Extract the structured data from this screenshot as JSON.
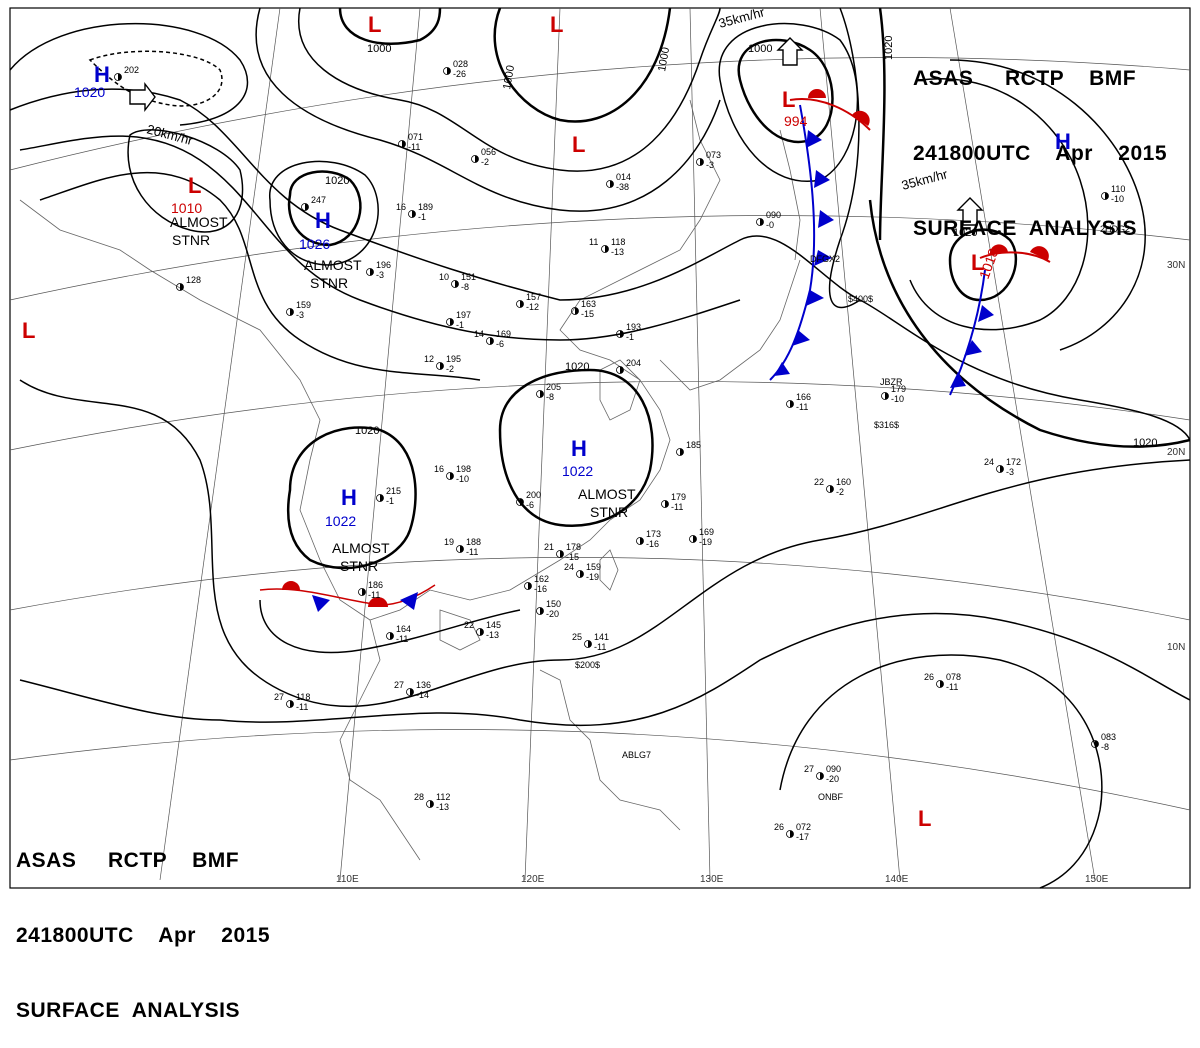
{
  "header_top": {
    "line1": "ASAS     RCTP    BMF",
    "line2": "241800UTC    Apr    2015",
    "line3": "SURFACE  ANALYSIS"
  },
  "header_bottom": {
    "line1": "ASAS     RCTP    BMF",
    "line2": "241800UTC    Apr    2015",
    "line3": "SURFACE  ANALYSIS"
  },
  "pressure_centers": [
    {
      "id": "h-nw",
      "type": "H",
      "pressure": "1020",
      "color": "#0000cc"
    },
    {
      "id": "l-nw",
      "type": "L",
      "pressure": "1010",
      "color": "#cc0000",
      "note": "ALMOST STNR"
    },
    {
      "id": "h-north",
      "type": "H",
      "pressure": "1026",
      "color": "#0000cc",
      "note": "ALMOST STNR"
    },
    {
      "id": "h-south-china",
      "type": "H",
      "pressure": "1022",
      "color": "#0000cc",
      "note": "ALMOST STNR"
    },
    {
      "id": "h-east-china",
      "type": "H",
      "pressure": "1022",
      "color": "#0000cc",
      "note": "ALMOST STNR"
    },
    {
      "id": "l-japan-sea",
      "type": "L",
      "pressure": "994",
      "color": "#cc0000"
    },
    {
      "id": "l-pacific",
      "type": "L",
      "pressure": "1018",
      "color": "#cc0000"
    },
    {
      "id": "h-ne",
      "type": "H",
      "pressure": "",
      "color": "#0000cc"
    },
    {
      "id": "l-top1",
      "type": "L",
      "pressure": "",
      "color": "#cc0000"
    },
    {
      "id": "l-top2",
      "type": "L",
      "pressure": "",
      "color": "#cc0000"
    },
    {
      "id": "l-mongolia",
      "type": "L",
      "pressure": "",
      "color": "#cc0000"
    },
    {
      "id": "l-west",
      "type": "L",
      "pressure": "",
      "color": "#cc0000"
    },
    {
      "id": "l-south-pacific",
      "type": "L",
      "pressure": "",
      "color": "#cc0000"
    }
  ],
  "movements": [
    {
      "id": "move-nw",
      "text": "20km/hr"
    },
    {
      "id": "move-japan",
      "text": "35km/hr"
    },
    {
      "id": "move-pacific",
      "text": "35km/hr"
    }
  ],
  "isobar_labels": [
    {
      "id": "iso-1000a",
      "text": "1000"
    },
    {
      "id": "iso-1000b",
      "text": "1000"
    },
    {
      "id": "iso-1000c",
      "text": "1000"
    },
    {
      "id": "iso-1000d",
      "text": "1000"
    },
    {
      "id": "iso-1020a",
      "text": "1020"
    },
    {
      "id": "iso-1020b",
      "text": "1020"
    },
    {
      "id": "iso-1020c",
      "text": "1020"
    },
    {
      "id": "iso-1020d",
      "text": "1020"
    },
    {
      "id": "iso-1020e",
      "text": "1020"
    },
    {
      "id": "iso-1020f",
      "text": "1020"
    }
  ],
  "axis_labels": {
    "lon": [
      "110E",
      "120E",
      "130E",
      "140E",
      "150E"
    ],
    "lat": [
      "30N",
      "20N",
      "10N"
    ]
  },
  "station_plots": [
    {
      "id": "st1",
      "temp": "28",
      "pres": "112",
      "dp": "-13"
    },
    {
      "id": "st2",
      "temp": "27",
      "pres": "118",
      "dp": "-11"
    },
    {
      "id": "st3",
      "temp": "27",
      "pres": "136",
      "dp": "-14"
    },
    {
      "id": "st4",
      "temp": "25",
      "pres": "141",
      "dp": "-11"
    },
    {
      "id": "st5",
      "temp": "24",
      "pres": "159",
      "dp": "-19"
    },
    {
      "id": "st6",
      "temp": "22",
      "pres": "145",
      "dp": "-13"
    },
    {
      "id": "st7",
      "temp": "21",
      "pres": "178",
      "dp": "-15"
    },
    {
      "id": "st8",
      "temp": "19",
      "pres": "188",
      "dp": "-11"
    },
    {
      "id": "st9",
      "temp": "16",
      "pres": "198",
      "dp": "-10"
    },
    {
      "id": "st10",
      "temp": "12",
      "pres": "195",
      "dp": "-2"
    },
    {
      "id": "st11",
      "temp": "11",
      "pres": "118",
      "dp": "-13"
    },
    {
      "id": "st12",
      "temp": "10",
      "pres": "151",
      "dp": "-8"
    },
    {
      "id": "st13",
      "temp": "14",
      "pres": "169",
      "dp": "-6"
    },
    {
      "id": "st14",
      "temp": "24",
      "pres": "172",
      "dp": "-3"
    },
    {
      "id": "st15",
      "temp": "26",
      "pres": "078",
      "dp": "-11"
    },
    {
      "id": "st16",
      "temp": "26",
      "pres": "072",
      "dp": "-17"
    },
    {
      "id": "st17",
      "temp": "27",
      "pres": "090",
      "dp": "-20"
    },
    {
      "id": "st18",
      "temp": "22",
      "pres": "160",
      "dp": "-2"
    },
    {
      "id": "st19",
      "temp": "16",
      "pres": "189",
      "dp": "-1"
    },
    {
      "id": "st20",
      "temp": "",
      "pres": "200",
      "dp": "-6"
    },
    {
      "id": "st21",
      "temp": "",
      "pres": "205",
      "dp": "-8"
    },
    {
      "id": "st22",
      "temp": "",
      "pres": "215",
      "dp": "-1"
    },
    {
      "id": "st23",
      "temp": "",
      "pres": "186",
      "dp": "-11"
    },
    {
      "id": "st24",
      "temp": "",
      "pres": "164",
      "dp": "-11"
    },
    {
      "id": "st25",
      "temp": "",
      "pres": "162",
      "dp": "-16"
    },
    {
      "id": "st26",
      "temp": "",
      "pres": "150",
      "dp": "-20"
    },
    {
      "id": "st27",
      "temp": "",
      "pres": "173",
      "dp": "-16"
    },
    {
      "id": "st28",
      "temp": "",
      "pres": "179",
      "dp": "-11"
    },
    {
      "id": "st29",
      "temp": "",
      "pres": "169",
      "dp": "-19"
    },
    {
      "id": "st30",
      "temp": "",
      "pres": "193",
      "dp": "-1"
    },
    {
      "id": "st31",
      "temp": "",
      "pres": "157",
      "dp": "-12"
    },
    {
      "id": "st32",
      "temp": "",
      "pres": "163",
      "dp": "-15"
    },
    {
      "id": "st33",
      "temp": "",
      "pres": "197",
      "dp": "-1"
    },
    {
      "id": "st34",
      "temp": "",
      "pres": "196",
      "dp": "-3"
    },
    {
      "id": "st35",
      "temp": "",
      "pres": "159",
      "dp": "-3"
    },
    {
      "id": "st36",
      "temp": "",
      "pres": "166",
      "dp": "-11"
    },
    {
      "id": "st37",
      "temp": "",
      "pres": "128",
      "dp": ""
    },
    {
      "id": "st38",
      "temp": "",
      "pres": "056",
      "dp": "-2"
    },
    {
      "id": "st39",
      "temp": "",
      "pres": "014",
      "dp": "-38"
    },
    {
      "id": "st40",
      "temp": "",
      "pres": "073",
      "dp": "-3"
    },
    {
      "id": "st41",
      "temp": "",
      "pres": "090",
      "dp": "-0"
    },
    {
      "id": "st42",
      "temp": "",
      "pres": "110",
      "dp": "-10"
    },
    {
      "id": "st43",
      "temp": "",
      "pres": "083",
      "dp": "-8"
    },
    {
      "id": "st44",
      "temp": "",
      "pres": "179",
      "dp": "-10"
    },
    {
      "id": "st45",
      "temp": "",
      "pres": "071",
      "dp": "-11"
    },
    {
      "id": "st46",
      "temp": "",
      "pres": "028",
      "dp": "-26"
    },
    {
      "id": "st47",
      "temp": "",
      "pres": "202",
      "dp": ""
    },
    {
      "id": "st48",
      "temp": "",
      "pres": "247",
      "dp": ""
    },
    {
      "id": "st49",
      "temp": "",
      "pres": "185",
      "dp": ""
    },
    {
      "id": "st50",
      "temp": "",
      "pres": "204",
      "dp": ""
    }
  ],
  "station_codes": [
    {
      "id": "code1",
      "text": "ABLG7"
    },
    {
      "id": "code2",
      "text": "ONBF"
    },
    {
      "id": "code3",
      "text": "$200$"
    },
    {
      "id": "code4",
      "text": "$316$"
    },
    {
      "id": "code5",
      "text": "$400$"
    },
    {
      "id": "code6",
      "text": "DFGX2"
    },
    {
      "id": "code7",
      "text": "JBZR"
    },
    {
      "id": "code8",
      "text": "2HDG2"
    }
  ]
}
